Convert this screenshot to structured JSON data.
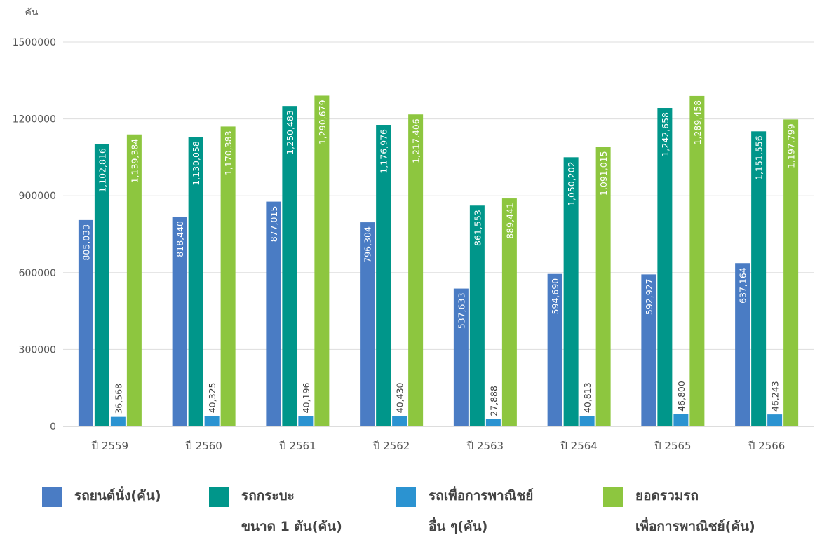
{
  "chart_data": {
    "type": "bar",
    "y_axis_label": "คัน",
    "categories": [
      "ปี 2559",
      "ปี 2560",
      "ปี 2561",
      "ปี 2562",
      "ปี 2563",
      "ปี 2564",
      "ปี 2565",
      "ปี 2566"
    ],
    "series": [
      {
        "name": "รถยนต์นั่ง(คัน)",
        "color": "#4a7cc4",
        "values": [
          805033,
          818440,
          877015,
          796304,
          537633,
          594690,
          592927,
          637164
        ],
        "value_labels": [
          "805,033",
          "818,440",
          "877,015",
          "796,304",
          "537,633",
          "594,690",
          "592,927",
          "637,164"
        ]
      },
      {
        "name": "รถกระบะ\nขนาด 1 ตัน(คัน)",
        "color": "#00968a",
        "values": [
          1102816,
          1130058,
          1250483,
          1176976,
          861553,
          1050202,
          1242658,
          1151556
        ],
        "value_labels": [
          "1,102,816",
          "1,130,058",
          "1,250,483",
          "1,176,976",
          "861,553",
          "1,050,202",
          "1,242,658",
          "1,151,556"
        ]
      },
      {
        "name": "รถเพื่อการพาณิชย์\nอื่น ๆ(คัน)",
        "color": "#2b93d1",
        "values": [
          36568,
          40325,
          40196,
          40430,
          27888,
          40813,
          46800,
          46243
        ],
        "value_labels": [
          "36,568",
          "40,325",
          "40,196",
          "40,430",
          "27,888",
          "40,813",
          "46,800",
          "46,243"
        ]
      },
      {
        "name": "ยอดรวมรถ\nเพื่อการพาณิชย์(คัน)",
        "color": "#8dc63f",
        "values": [
          1139384,
          1170383,
          1290679,
          1217406,
          889441,
          1091015,
          1289458,
          1197799
        ],
        "value_labels": [
          "1,139,384",
          "1,170,383",
          "1,290,679",
          "1,217,406",
          "889,441",
          "1,091,015",
          "1,289,458",
          "1,197,799"
        ]
      }
    ],
    "ylim": [
      0,
      1500000
    ],
    "yticks": [
      0,
      300000,
      600000,
      900000,
      1200000,
      1500000
    ],
    "grid": true
  }
}
